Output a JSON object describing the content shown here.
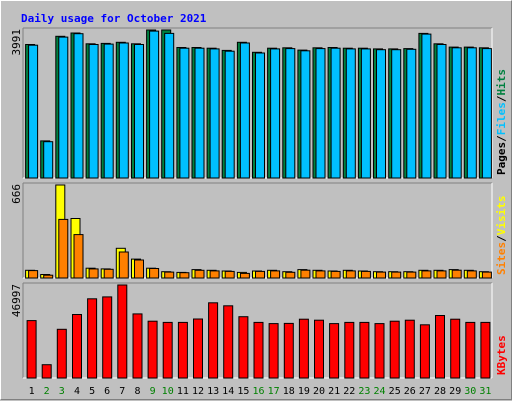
{
  "title": "Daily usage for October 2021",
  "chart_data": [
    {
      "type": "bar",
      "ylabel_parts": [
        "Pages",
        "Files",
        "Hits"
      ],
      "ylabel_separator": "/",
      "ymax_label": "3991",
      "ylim": [
        0,
        3991
      ],
      "categories": [
        "1",
        "2",
        "3",
        "4",
        "5",
        "6",
        "7",
        "8",
        "9",
        "10",
        "11",
        "12",
        "13",
        "14",
        "15",
        "16",
        "17",
        "18",
        "19",
        "20",
        "21",
        "22",
        "23",
        "24",
        "25",
        "26",
        "27",
        "28",
        "29",
        "30",
        "31"
      ],
      "series": [
        {
          "name": "Hits",
          "color": "#008040",
          "values": [
            3600,
            1000,
            3820,
            3910,
            3620,
            3630,
            3660,
            3620,
            3991,
            3991,
            3520,
            3520,
            3500,
            3440,
            3660,
            3390,
            3500,
            3510,
            3450,
            3510,
            3520,
            3500,
            3500,
            3480,
            3480,
            3490,
            3900,
            3620,
            3530,
            3530,
            3510
          ]
        },
        {
          "name": "Files",
          "color": "#00c0ff",
          "values": [
            3580,
            980,
            3800,
            3890,
            3600,
            3610,
            3640,
            3600,
            3960,
            3900,
            3500,
            3500,
            3480,
            3420,
            3640,
            3370,
            3480,
            3490,
            3430,
            3490,
            3500,
            3480,
            3480,
            3460,
            3460,
            3470,
            3880,
            3600,
            3510,
            3510,
            3490
          ]
        }
      ]
    },
    {
      "type": "bar",
      "ylabel_parts": [
        "Sites",
        "Visits"
      ],
      "ylabel_separator": "/",
      "ymax_label": "666",
      "ylim": [
        0,
        666
      ],
      "categories": [
        "1",
        "2",
        "3",
        "4",
        "5",
        "6",
        "7",
        "8",
        "9",
        "10",
        "11",
        "12",
        "13",
        "14",
        "15",
        "16",
        "17",
        "18",
        "19",
        "20",
        "21",
        "22",
        "23",
        "24",
        "25",
        "26",
        "27",
        "28",
        "29",
        "30",
        "31"
      ],
      "series": [
        {
          "name": "Visits",
          "color": "#ffff00",
          "values": [
            55,
            25,
            666,
            426,
            70,
            65,
            213,
            135,
            70,
            45,
            40,
            60,
            55,
            50,
            40,
            50,
            55,
            45,
            60,
            55,
            50,
            55,
            50,
            45,
            45,
            45,
            55,
            55,
            60,
            55,
            45
          ]
        },
        {
          "name": "Sites",
          "color": "#ff8000",
          "values": [
            53,
            20,
            420,
            311,
            65,
            62,
            186,
            129,
            68,
            42,
            38,
            55,
            51,
            47,
            33,
            47,
            51,
            41,
            56,
            51,
            47,
            51,
            47,
            42,
            42,
            42,
            51,
            51,
            56,
            51,
            42
          ]
        }
      ]
    },
    {
      "type": "bar",
      "ylabel_parts": [
        "KBytes"
      ],
      "ymax_label": "46997",
      "ylim": [
        0,
        46997
      ],
      "categories": [
        "1",
        "2",
        "3",
        "4",
        "5",
        "6",
        "7",
        "8",
        "9",
        "10",
        "11",
        "12",
        "13",
        "14",
        "15",
        "16",
        "17",
        "18",
        "19",
        "20",
        "21",
        "22",
        "23",
        "24",
        "25",
        "26",
        "27",
        "28",
        "29",
        "30",
        "31"
      ],
      "weekend_days": [
        "2",
        "3",
        "9",
        "10",
        "16",
        "17",
        "23",
        "24",
        "30",
        "31"
      ],
      "series": [
        {
          "name": "KBytes",
          "color": "#ff0000",
          "values": [
            29000,
            6700,
            24600,
            32100,
            40000,
            41000,
            46997,
            32400,
            28700,
            28100,
            28100,
            29800,
            38000,
            36500,
            31000,
            28100,
            27500,
            27600,
            29700,
            29200,
            27500,
            28100,
            28100,
            27500,
            28700,
            29200,
            26900,
            31600,
            29700,
            28100,
            28100
          ]
        }
      ]
    }
  ],
  "colors": {
    "background": "#c0c0c0",
    "title": "#0000ff",
    "weekday_label": "#000000",
    "weekend_label": "#008000",
    "plot_edge_light": "#ffffff",
    "plot_edge_dark": "#808080"
  }
}
